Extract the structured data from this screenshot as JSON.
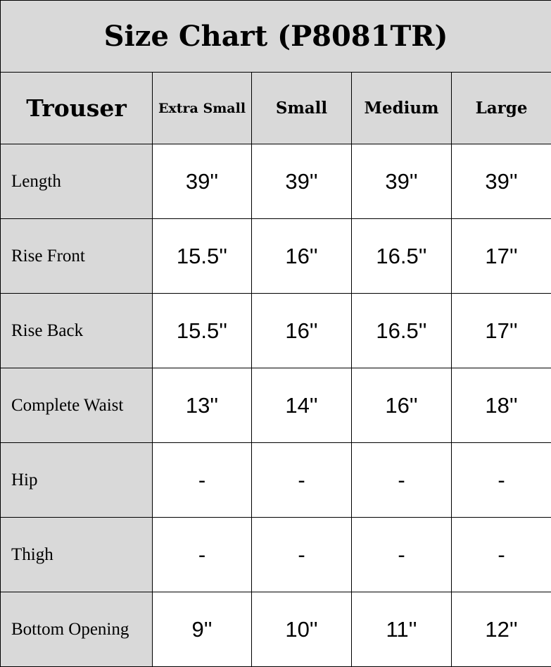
{
  "title": "Size Chart (P8081TR)",
  "columns": [
    "Trouser",
    "Extra Small",
    "Small",
    "Medium",
    "Large"
  ],
  "rows": [
    {
      "label": "Length",
      "values": [
        "39''",
        "39''",
        "39''",
        "39''"
      ]
    },
    {
      "label": "Rise Front",
      "values": [
        "15.5''",
        "16''",
        "16.5''",
        "17''"
      ]
    },
    {
      "label": "Rise Back",
      "values": [
        "15.5''",
        "16''",
        "16.5''",
        "17''"
      ]
    },
    {
      "label": "Complete Waist",
      "values": [
        "13''",
        "14''",
        "16''",
        "18''"
      ]
    },
    {
      "label": "Hip",
      "values": [
        "-",
        "-",
        "-",
        "-"
      ]
    },
    {
      "label": "Thigh",
      "values": [
        "-",
        "-",
        "-",
        "-"
      ]
    },
    {
      "label": "Bottom Opening",
      "values": [
        "9''",
        "10''",
        "11''",
        "12''"
      ]
    }
  ],
  "colors": {
    "header_bg": "#d9d9d9",
    "cell_bg": "#ffffff",
    "border": "#000000"
  }
}
